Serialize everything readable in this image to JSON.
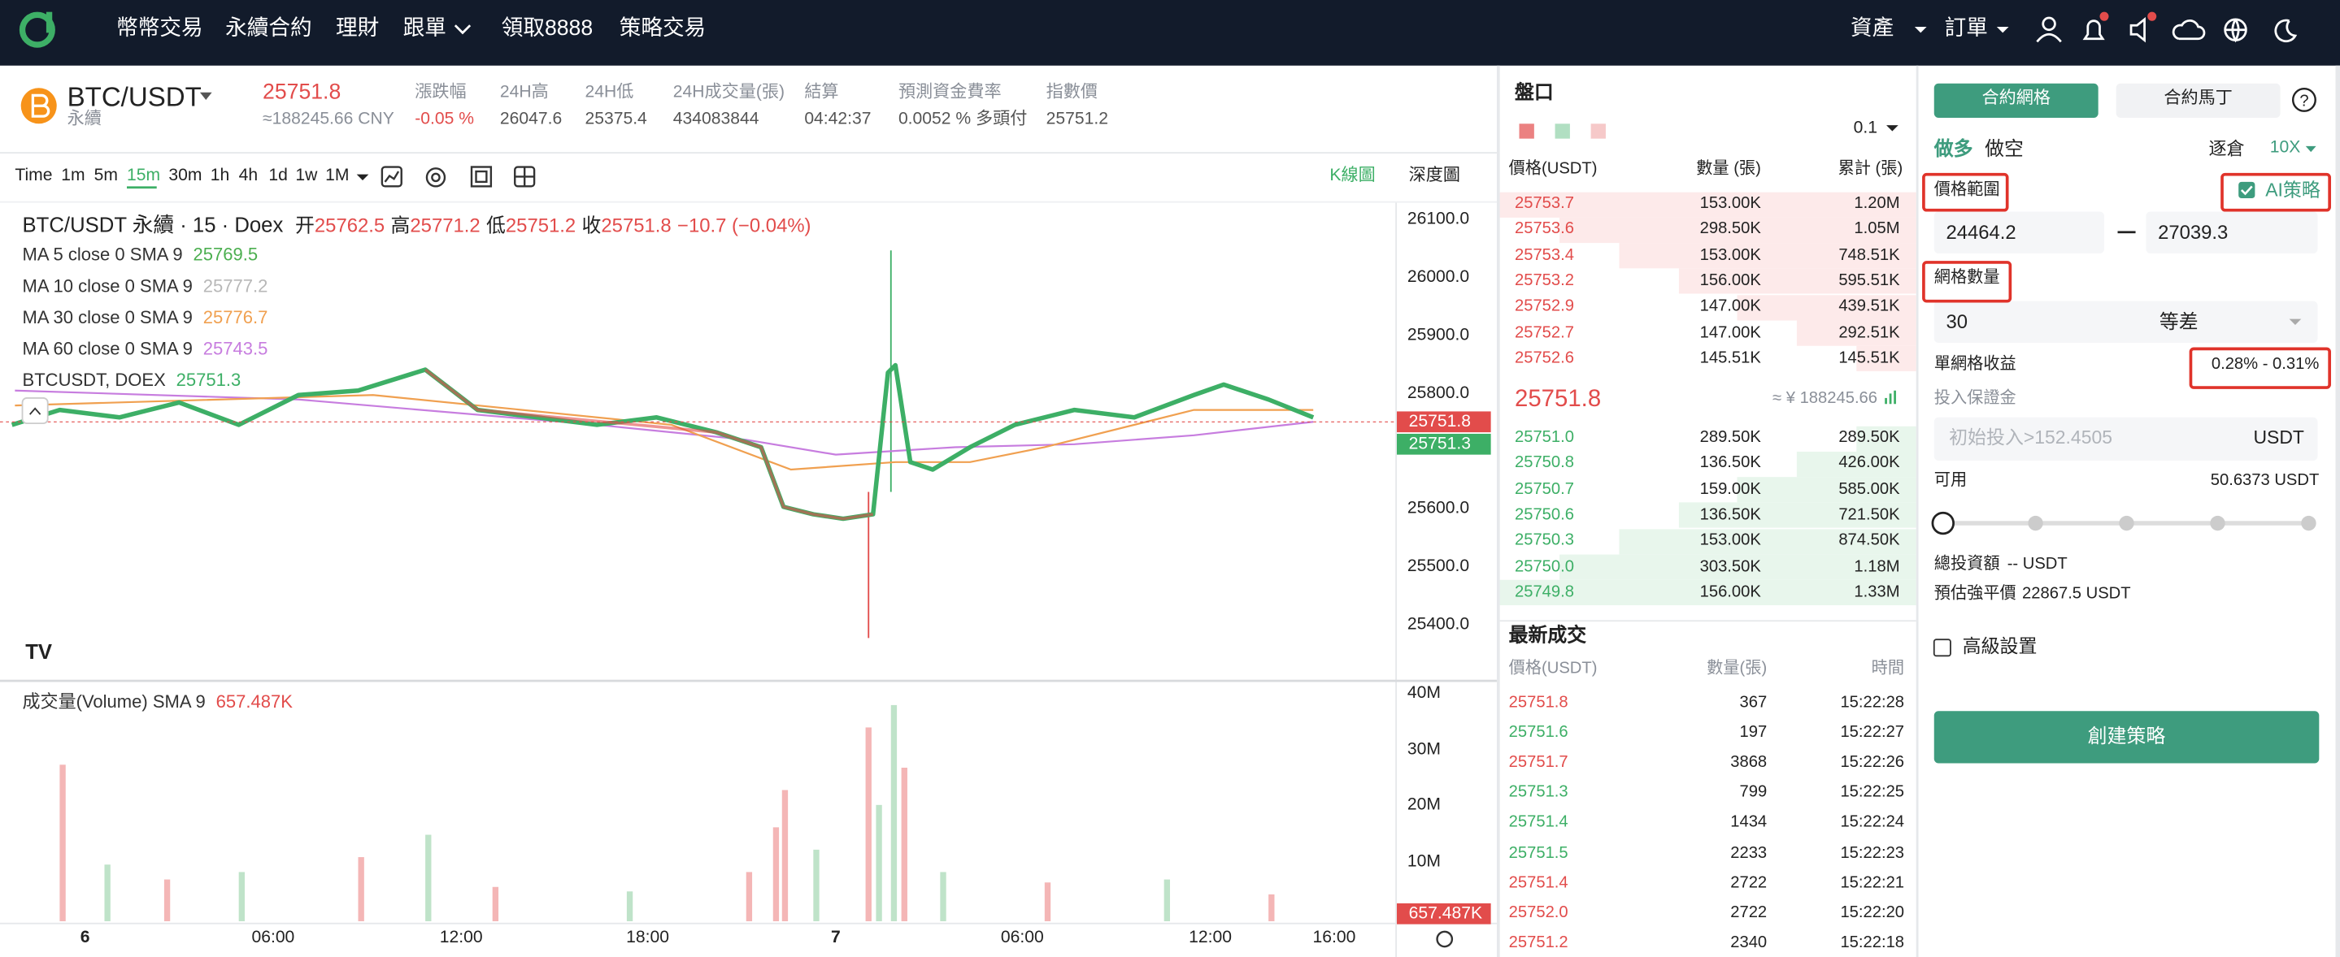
{
  "nav": {
    "menu": [
      "幣幣交易",
      "永續合約",
      "理財",
      "跟單",
      "領取8888",
      "策略交易"
    ],
    "right": [
      "資產",
      "訂單"
    ]
  },
  "ticker": {
    "symbol": "BTC/USDT",
    "sub": "永續",
    "price": "25751.8",
    "cny": "≈188245.66 CNY",
    "stats": [
      {
        "label": "漲跌幅",
        "value": "-0.05 %",
        "color": "#e24c4b"
      },
      {
        "label": "24H高",
        "value": "26047.6",
        "color": "#555"
      },
      {
        "label": "24H低",
        "value": "25375.4",
        "color": "#555"
      },
      {
        "label": "24H成交量(張)",
        "value": "434083844",
        "color": "#555"
      },
      {
        "label": "結算",
        "value": "04:42:37",
        "color": "#555"
      },
      {
        "label": "預測資金費率",
        "value": "0.0052 % 多頭付",
        "color": "#555"
      },
      {
        "label": "指數價",
        "value": "25751.2",
        "color": "#555"
      }
    ]
  },
  "toolbar": {
    "intervals": [
      "Time",
      "1m",
      "5m",
      "15m",
      "30m",
      "1h",
      "4h",
      "1d",
      "1w",
      "1M"
    ],
    "kline": "K線圖",
    "depth": "深度圖"
  },
  "chart": {
    "header": "BTC/USDT 永續 · 15 · Doex",
    "ohlc": [
      {
        "label": "开",
        "value": "25762.5"
      },
      {
        "label": "高",
        "value": "25771.2"
      },
      {
        "label": "低",
        "value": "25751.2"
      },
      {
        "label": "收",
        "value": "25751.8"
      }
    ],
    "change": "−10.7 (−0.04%)",
    "ma": [
      {
        "label": "MA 5 close 0 SMA 9",
        "value": "25769.5",
        "color": "#4caf50"
      },
      {
        "label": "MA 10 close 0 SMA 9",
        "value": "25777.2",
        "color": "#b8b8b8"
      },
      {
        "label": "MA 30 close 0 SMA 9",
        "value": "25776.7",
        "color": "#f0a050"
      },
      {
        "label": "MA 60 close 0 SMA 9",
        "value": "25743.5",
        "color": "#c77ddf"
      },
      {
        "label": "BTCUSDT, DOEX",
        "value": "25751.3",
        "color": "#3daf66"
      }
    ],
    "price_axis": [
      "26100.0",
      "26000.0",
      "25900.0",
      "25800.0",
      "25600.0",
      "25500.0",
      "25400.0"
    ],
    "last_tag": "25751.8",
    "index_tag": "25751.3",
    "volume_label": "成交量(Volume) SMA 9",
    "volume_value": "657.487K",
    "volume_axis": [
      "40M",
      "30M",
      "20M",
      "10M"
    ],
    "volume_tag": "657.487K",
    "time_axis": [
      "6",
      "06:00",
      "12:00",
      "18:00",
      "7",
      "06:00",
      "12:00",
      "16:00"
    ]
  },
  "orderbook": {
    "title": "盤口",
    "precision": "0.1",
    "headers": [
      "價格(USDT)",
      "數量 (張)",
      "累計 (張)"
    ],
    "asks": [
      [
        "25753.7",
        "153.00K",
        "1.20M"
      ],
      [
        "25753.6",
        "298.50K",
        "1.05M"
      ],
      [
        "25753.4",
        "153.00K",
        "748.51K"
      ],
      [
        "25753.2",
        "156.00K",
        "595.51K"
      ],
      [
        "25752.9",
        "147.00K",
        "439.51K"
      ],
      [
        "25752.7",
        "147.00K",
        "292.51K"
      ],
      [
        "25752.6",
        "145.51K",
        "145.51K"
      ]
    ],
    "mid_price": "25751.8",
    "mid_cny": "≈ ¥ 188245.66",
    "bids": [
      [
        "25751.0",
        "289.50K",
        "289.50K"
      ],
      [
        "25750.8",
        "136.50K",
        "426.00K"
      ],
      [
        "25750.7",
        "159.00K",
        "585.00K"
      ],
      [
        "25750.6",
        "136.50K",
        "721.50K"
      ],
      [
        "25750.3",
        "153.00K",
        "874.50K"
      ],
      [
        "25750.0",
        "303.50K",
        "1.18M"
      ],
      [
        "25749.8",
        "156.00K",
        "1.33M"
      ]
    ]
  },
  "trades": {
    "title": "最新成交",
    "headers": [
      "價格(USDT)",
      "數量(張)",
      "時間"
    ],
    "rows": [
      {
        "price": "25751.8",
        "qty": "367",
        "time": "15:22:28",
        "color": "#e24c4b"
      },
      {
        "price": "25751.6",
        "qty": "197",
        "time": "15:22:27",
        "color": "#3daf66"
      },
      {
        "price": "25751.7",
        "qty": "3868",
        "time": "15:22:26",
        "color": "#e24c4b"
      },
      {
        "price": "25751.3",
        "qty": "799",
        "time": "15:22:25",
        "color": "#3daf66"
      },
      {
        "price": "25751.4",
        "qty": "1434",
        "time": "15:22:24",
        "color": "#3daf66"
      },
      {
        "price": "25751.5",
        "qty": "2233",
        "time": "15:22:23",
        "color": "#3daf66"
      },
      {
        "price": "25751.4",
        "qty": "2722",
        "time": "15:22:21",
        "color": "#e24c4b"
      },
      {
        "price": "25752.0",
        "qty": "2722",
        "time": "15:22:20",
        "color": "#e24c4b"
      },
      {
        "price": "25751.2",
        "qty": "2340",
        "time": "15:22:18",
        "color": "#e24c4b"
      }
    ]
  },
  "strategy": {
    "tabs": [
      "合約網格",
      "合約馬丁"
    ],
    "sides": [
      "做多",
      "做空"
    ],
    "margin_mode": "逐倉",
    "leverage": "10X",
    "price_range_label": "價格範圍",
    "ai_label": "AI策略",
    "range_low": "24464.2",
    "range_high": "27039.3",
    "grid_count_label": "網格數量",
    "grid_count": "30",
    "grid_mode": "等差",
    "per_grid_label": "單網格收益",
    "per_grid_value": "0.28% - 0.31%",
    "margin_label": "投入保證金",
    "margin_placeholder": "初始投入>152.4505",
    "margin_unit": "USDT",
    "available_label": "可用",
    "available_value": "50.6373 USDT",
    "total_label": "總投資額",
    "total_value": "-- USDT",
    "liq_label": "預估強平價",
    "liq_value": "22867.5 USDT",
    "advanced": "高級設置",
    "submit": "創建策略"
  }
}
